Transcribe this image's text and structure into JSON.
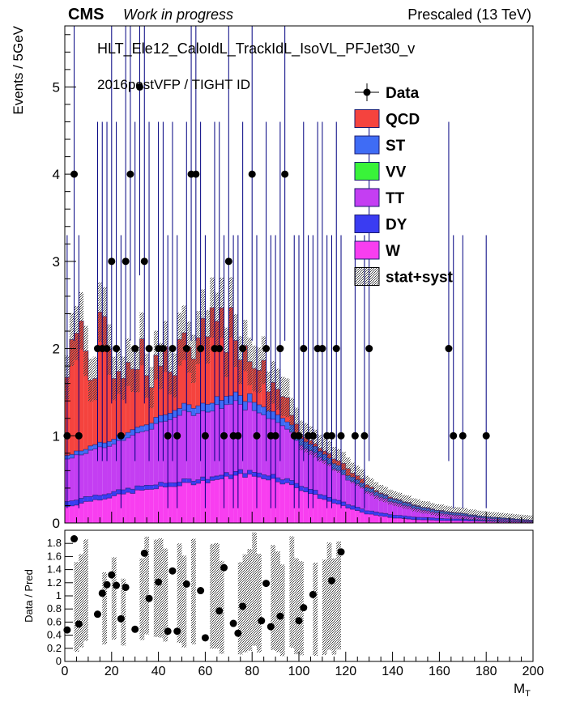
{
  "header": {
    "experiment": "CMS",
    "status": "Work in progress",
    "energy": "Prescaled (13 TeV)"
  },
  "annotations": {
    "trigger": "HLT_Ele12_CaloIdL_TrackIdL_IsoVL_PFJet30_v",
    "selection": "2016postVFP / TIGHT ID"
  },
  "legend": {
    "placement": "top-right",
    "entries": [
      {
        "label": "Data",
        "style": "marker",
        "color": "#000000"
      },
      {
        "label": "QCD",
        "style": "fill",
        "color": "#f5433e"
      },
      {
        "label": "ST",
        "style": "fill",
        "color": "#3f6cf5"
      },
      {
        "label": "VV",
        "style": "fill",
        "color": "#39f339"
      },
      {
        "label": "TT",
        "style": "fill",
        "color": "#c43ef2"
      },
      {
        "label": "DY",
        "style": "fill",
        "color": "#3a3cf2"
      },
      {
        "label": "W",
        "style": "fill",
        "color": "#f83ef0"
      },
      {
        "label": "stat+syst",
        "style": "hatch",
        "color": "#555555"
      }
    ]
  },
  "colors": {
    "QCD": "#f5433e",
    "ST": "#3f6cf5",
    "VV": "#39f339",
    "TT": "#c43ef2",
    "DY": "#3a3cf2",
    "W": "#f83ef0",
    "error_bar": "#000080",
    "uncertainty": "#555555"
  },
  "chart_data": [
    {
      "type": "bar",
      "stacked": true,
      "ylabel": "Events / 5GeV",
      "xlim": [
        0,
        200
      ],
      "ylim": [
        0,
        5.7
      ],
      "yticks": [
        "0",
        "1",
        "2",
        "3",
        "4",
        "5"
      ],
      "bin_width": 2,
      "bin_edges": [
        0,
        200
      ],
      "w_curve": [
        [
          0,
          0.18
        ],
        [
          10,
          0.25
        ],
        [
          20,
          0.3
        ],
        [
          30,
          0.36
        ],
        [
          40,
          0.4
        ],
        [
          50,
          0.44
        ],
        [
          60,
          0.48
        ],
        [
          70,
          0.52
        ],
        [
          75,
          0.55
        ],
        [
          80,
          0.54
        ],
        [
          90,
          0.5
        ],
        [
          100,
          0.4
        ],
        [
          110,
          0.28
        ],
        [
          120,
          0.18
        ],
        [
          130,
          0.1
        ],
        [
          140,
          0.06
        ],
        [
          150,
          0.04
        ],
        [
          160,
          0.03
        ],
        [
          180,
          0.02
        ],
        [
          200,
          0.01
        ]
      ],
      "dy_curve": [
        [
          0,
          0.06
        ],
        [
          20,
          0.05
        ],
        [
          60,
          0.04
        ],
        [
          100,
          0.05
        ],
        [
          200,
          0.005
        ]
      ],
      "tt_curve": [
        [
          0,
          0.48
        ],
        [
          10,
          0.52
        ],
        [
          20,
          0.55
        ],
        [
          30,
          0.6
        ],
        [
          40,
          0.7
        ],
        [
          50,
          0.75
        ],
        [
          60,
          0.78
        ],
        [
          70,
          0.8
        ],
        [
          80,
          0.75
        ],
        [
          90,
          0.65
        ],
        [
          100,
          0.5
        ],
        [
          110,
          0.4
        ],
        [
          120,
          0.3
        ],
        [
          130,
          0.22
        ],
        [
          140,
          0.15
        ],
        [
          150,
          0.1
        ],
        [
          160,
          0.06
        ],
        [
          170,
          0.04
        ],
        [
          180,
          0.02
        ],
        [
          200,
          0.01
        ]
      ],
      "st_curve": [
        [
          0,
          0.04
        ],
        [
          50,
          0.08
        ],
        [
          75,
          0.1
        ],
        [
          100,
          0.08
        ],
        [
          130,
          0.04
        ],
        [
          200,
          0.005
        ]
      ],
      "qcd_curve": [
        [
          0,
          1.4
        ],
        [
          10,
          1.1
        ],
        [
          20,
          1.0
        ],
        [
          30,
          0.9
        ],
        [
          40,
          0.6
        ],
        [
          50,
          0.6
        ],
        [
          60,
          0.7
        ],
        [
          70,
          0.9
        ],
        [
          80,
          0.5
        ],
        [
          90,
          0.35
        ],
        [
          100,
          0.05
        ],
        [
          110,
          0.03
        ],
        [
          120,
          0.06
        ],
        [
          130,
          0.03
        ],
        [
          140,
          0.01
        ],
        [
          200,
          0.0
        ]
      ],
      "data_points": [
        [
          1,
          1
        ],
        [
          4,
          4
        ],
        [
          6,
          1
        ],
        [
          14,
          2
        ],
        [
          16,
          2
        ],
        [
          18,
          2
        ],
        [
          20,
          3
        ],
        [
          22,
          2
        ],
        [
          24,
          1
        ],
        [
          26,
          3
        ],
        [
          28,
          4
        ],
        [
          30,
          2
        ],
        [
          32,
          5
        ],
        [
          34,
          3
        ],
        [
          36,
          2
        ],
        [
          40,
          2
        ],
        [
          42,
          2
        ],
        [
          44,
          1
        ],
        [
          46,
          2
        ],
        [
          48,
          1
        ],
        [
          52,
          2
        ],
        [
          54,
          4
        ],
        [
          56,
          4
        ],
        [
          58,
          2
        ],
        [
          60,
          1
        ],
        [
          64,
          2
        ],
        [
          66,
          2
        ],
        [
          68,
          1
        ],
        [
          70,
          3
        ],
        [
          72,
          1
        ],
        [
          74,
          1
        ],
        [
          76,
          2
        ],
        [
          80,
          4
        ],
        [
          82,
          1
        ],
        [
          86,
          2
        ],
        [
          88,
          1
        ],
        [
          90,
          1
        ],
        [
          92,
          2
        ],
        [
          94,
          4
        ],
        [
          98,
          1
        ],
        [
          100,
          1
        ],
        [
          102,
          2
        ],
        [
          104,
          1
        ],
        [
          106,
          1
        ],
        [
          108,
          2
        ],
        [
          110,
          2
        ],
        [
          112,
          1
        ],
        [
          114,
          1
        ],
        [
          116,
          2
        ],
        [
          118,
          1
        ],
        [
          124,
          1
        ],
        [
          128,
          1
        ],
        [
          130,
          2
        ],
        [
          164,
          2
        ],
        [
          166,
          1
        ],
        [
          170,
          1
        ],
        [
          180,
          1
        ]
      ]
    },
    {
      "type": "scatter",
      "ylabel": "Data / Pred",
      "xlabel": "M",
      "xlabel_subscript": "T",
      "xlim": [
        0,
        200
      ],
      "ylim": [
        0,
        2
      ],
      "xticks": [
        "0",
        "20",
        "40",
        "60",
        "80",
        "100",
        "120",
        "140",
        "160",
        "180",
        "200"
      ],
      "yticks": [
        "0",
        "0.2",
        "0.4",
        "0.6",
        "0.8",
        "1",
        "1.2",
        "1.4",
        "1.6",
        "1.8",
        "2"
      ],
      "ratio_points": [
        [
          1,
          0.48
        ],
        [
          4,
          1.87
        ],
        [
          6,
          0.57
        ],
        [
          14,
          0.72
        ],
        [
          16,
          1.04
        ],
        [
          18,
          1.17
        ],
        [
          20,
          1.32
        ],
        [
          22,
          1.16
        ],
        [
          24,
          0.65
        ],
        [
          26,
          1.13
        ],
        [
          30,
          0.49
        ],
        [
          34,
          1.65
        ],
        [
          36,
          0.96
        ],
        [
          40,
          1.21
        ],
        [
          44,
          0.46
        ],
        [
          46,
          1.38
        ],
        [
          48,
          0.46
        ],
        [
          52,
          1.18
        ],
        [
          58,
          1.08
        ],
        [
          60,
          0.36
        ],
        [
          66,
          0.77
        ],
        [
          68,
          1.43
        ],
        [
          72,
          0.58
        ],
        [
          74,
          0.43
        ],
        [
          76,
          0.84
        ],
        [
          84,
          0.62
        ],
        [
          86,
          1.19
        ],
        [
          88,
          0.53
        ],
        [
          92,
          0.69
        ],
        [
          100,
          0.62
        ],
        [
          102,
          0.82
        ],
        [
          106,
          1.02
        ],
        [
          114,
          1.23
        ],
        [
          118,
          1.67
        ]
      ],
      "uncertainty_band": [
        [
          0,
          0.2,
          1.9
        ],
        [
          14,
          0.3,
          1.5
        ],
        [
          30,
          0.35,
          1.6
        ],
        [
          60,
          0.2,
          1.8
        ],
        [
          90,
          0.15,
          1.7
        ],
        [
          120,
          0.2,
          1.9
        ]
      ]
    }
  ]
}
